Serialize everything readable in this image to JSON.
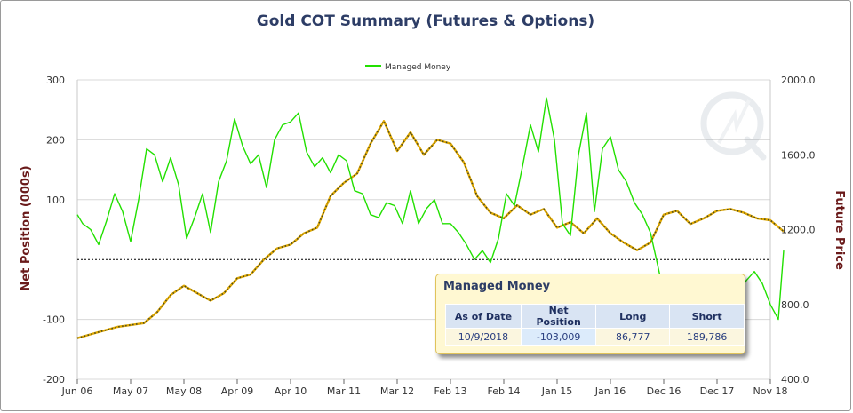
{
  "chart_data": {
    "type": "line",
    "title": "Gold COT Summary (Futures & Options)",
    "legend": {
      "entries": [
        "Managed Money"
      ],
      "placement": "top-center"
    },
    "left_axis": {
      "label": "Net Position (000s)",
      "ticks": [
        "300",
        "200",
        "100",
        "-100",
        "-200"
      ],
      "ylim": [
        -200,
        300
      ]
    },
    "right_axis": {
      "label": "Future Price",
      "ticks": [
        "2000.0",
        "1600.0",
        "1200.0",
        "800.0",
        "400.0"
      ],
      "ylim": [
        400,
        2000
      ]
    },
    "x_tick_labels": [
      "Jun 06",
      "May 07",
      "May 08",
      "Apr 09",
      "Apr 10",
      "Mar 11",
      "Mar 12",
      "Feb 13",
      "Feb 14",
      "Jan 15",
      "Jan 16",
      "Dec 16",
      "Dec 17",
      "Nov 18"
    ],
    "zero_line": true,
    "colors": {
      "managed_money": "#22e000",
      "price": "#e0a800",
      "zero_line": "#000000"
    },
    "series": [
      {
        "name": "Managed Money",
        "axis": "left",
        "x": [
          0,
          0.1,
          0.25,
          0.4,
          0.55,
          0.7,
          0.85,
          1.0,
          1.15,
          1.3,
          1.45,
          1.6,
          1.75,
          1.9,
          2.05,
          2.2,
          2.35,
          2.5,
          2.65,
          2.8,
          2.95,
          3.1,
          3.25,
          3.4,
          3.55,
          3.7,
          3.85,
          4.0,
          4.15,
          4.3,
          4.45,
          4.6,
          4.75,
          4.9,
          5.05,
          5.2,
          5.35,
          5.5,
          5.65,
          5.8,
          5.95,
          6.1,
          6.25,
          6.4,
          6.55,
          6.7,
          6.85,
          7.0,
          7.15,
          7.3,
          7.45,
          7.6,
          7.75,
          7.9,
          8.05,
          8.2,
          8.35,
          8.5,
          8.65,
          8.8,
          8.95,
          9.1,
          9.25,
          9.4,
          9.55,
          9.7,
          9.85,
          10.0,
          10.15,
          10.3,
          10.45,
          10.6,
          10.75,
          10.9,
          11.05,
          11.2,
          11.35,
          11.5,
          11.65,
          11.8,
          11.95,
          12.1,
          12.25,
          12.4,
          12.55,
          12.7,
          12.85,
          13.0,
          13.15,
          13.25
        ],
        "y": [
          75,
          60,
          50,
          25,
          65,
          110,
          80,
          30,
          100,
          185,
          175,
          130,
          170,
          125,
          35,
          70,
          110,
          45,
          130,
          165,
          235,
          190,
          160,
          175,
          120,
          200,
          225,
          230,
          245,
          180,
          155,
          170,
          145,
          175,
          165,
          115,
          110,
          75,
          70,
          95,
          90,
          60,
          115,
          60,
          85,
          100,
          60,
          60,
          45,
          25,
          0,
          15,
          -5,
          35,
          110,
          90,
          155,
          225,
          180,
          270,
          200,
          60,
          40,
          175,
          245,
          80,
          185,
          205,
          150,
          130,
          95,
          75,
          45,
          -15,
          -75,
          -90,
          -70,
          -55,
          -75,
          -110,
          -100,
          -95,
          -80,
          -55,
          -35,
          -20,
          -40,
          -75,
          -100,
          15
        ]
      },
      {
        "name": "",
        "axis": "right",
        "x": [
          0,
          0.25,
          0.5,
          0.75,
          1.0,
          1.25,
          1.5,
          1.75,
          2.0,
          2.25,
          2.5,
          2.75,
          3.0,
          3.25,
          3.5,
          3.75,
          4.0,
          4.25,
          4.5,
          4.75,
          5.0,
          5.25,
          5.5,
          5.75,
          6.0,
          6.25,
          6.5,
          6.75,
          7.0,
          7.25,
          7.5,
          7.75,
          8.0,
          8.25,
          8.5,
          8.75,
          9.0,
          9.25,
          9.5,
          9.75,
          10.0,
          10.25,
          10.5,
          10.75,
          11.0,
          11.25,
          11.5,
          11.75,
          12.0,
          12.25,
          12.5,
          12.75,
          13.0,
          13.25
        ],
        "y": [
          620,
          640,
          660,
          680,
          690,
          700,
          760,
          850,
          900,
          860,
          820,
          860,
          940,
          960,
          1040,
          1100,
          1120,
          1180,
          1210,
          1380,
          1450,
          1500,
          1660,
          1780,
          1620,
          1720,
          1600,
          1680,
          1660,
          1560,
          1380,
          1290,
          1260,
          1330,
          1280,
          1310,
          1210,
          1240,
          1180,
          1260,
          1180,
          1130,
          1090,
          1130,
          1280,
          1300,
          1230,
          1260,
          1300,
          1310,
          1290,
          1260,
          1250,
          1190
        ]
      }
    ]
  },
  "watermark": {
    "icon": "q-logo-watermark-icon"
  },
  "tooltip": {
    "title": "Managed Money",
    "headers": [
      "As of Date",
      "Net Position",
      "Long",
      "Short"
    ],
    "values": [
      "10/9/2018",
      "-103,009",
      "86,777",
      "189,786"
    ]
  }
}
